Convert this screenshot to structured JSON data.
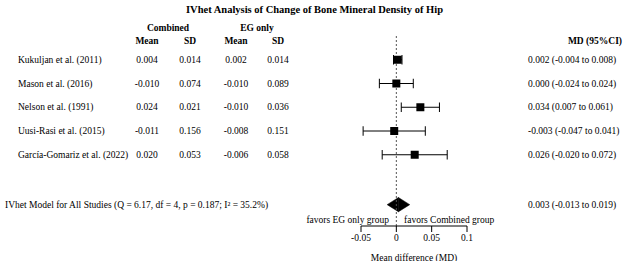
{
  "chart_data": {
    "type": "forest",
    "title": "IVhet Analysis of Change of Bone Mineral Density of Hip",
    "groups": [
      "Combined",
      "EG only"
    ],
    "column_headers": [
      "Mean",
      "SD",
      "Mean",
      "SD"
    ],
    "md_header": "MD (95%CI)",
    "studies": [
      {
        "name": "Kukuljan et al. (2011)",
        "cells": [
          "0.004",
          "0.014",
          "0.002",
          "0.014"
        ],
        "md": 0.002,
        "ci": [
          -0.004,
          0.008
        ],
        "md_label": "0.002 (-0.004 to 0.008)"
      },
      {
        "name": "Mason et al. (2016)",
        "cells": [
          "-0.010",
          "0.074",
          "-0.010",
          "0.089"
        ],
        "md": 0.0,
        "ci": [
          -0.024,
          0.024
        ],
        "md_label": "0.000 (-0.024 to 0.024)"
      },
      {
        "name": "Nelson et al. (1991)",
        "cells": [
          "0.024",
          "0.021",
          "-0.010",
          "0.036"
        ],
        "md": 0.034,
        "ci": [
          0.007,
          0.061
        ],
        "md_label": "0.034 (0.007 to 0.061)"
      },
      {
        "name": "Uusi-Rasi et al. (2015)",
        "cells": [
          "-0.011",
          "0.156",
          "-0.008",
          "0.151"
        ],
        "md": -0.003,
        "ci": [
          -0.047,
          0.041
        ],
        "md_label": "-0.003 (-0.047 to 0.041)"
      },
      {
        "name": "García-Gomariz et al. (2022)",
        "cells": [
          "0.020",
          "0.053",
          "-0.006",
          "0.058"
        ],
        "md": 0.026,
        "ci": [
          -0.02,
          0.072
        ],
        "md_label": "0.026 (-0.020 to 0.072)"
      }
    ],
    "pooled": {
      "name": "IVhet Model for All Studies (Q = 6.17, df = 4, p = 0.187; I² = 35.2%)",
      "md": 0.003,
      "ci": [
        -0.013,
        0.019
      ],
      "md_label": "0.003 (-0.013 to 0.019)"
    },
    "x_label": "Mean difference (MD)",
    "annotations": [
      "favors EG only group",
      "favors Combined group"
    ],
    "xlim": [
      -0.05,
      0.1
    ],
    "xticks": [
      -0.05,
      0,
      0.05,
      0.1
    ]
  }
}
